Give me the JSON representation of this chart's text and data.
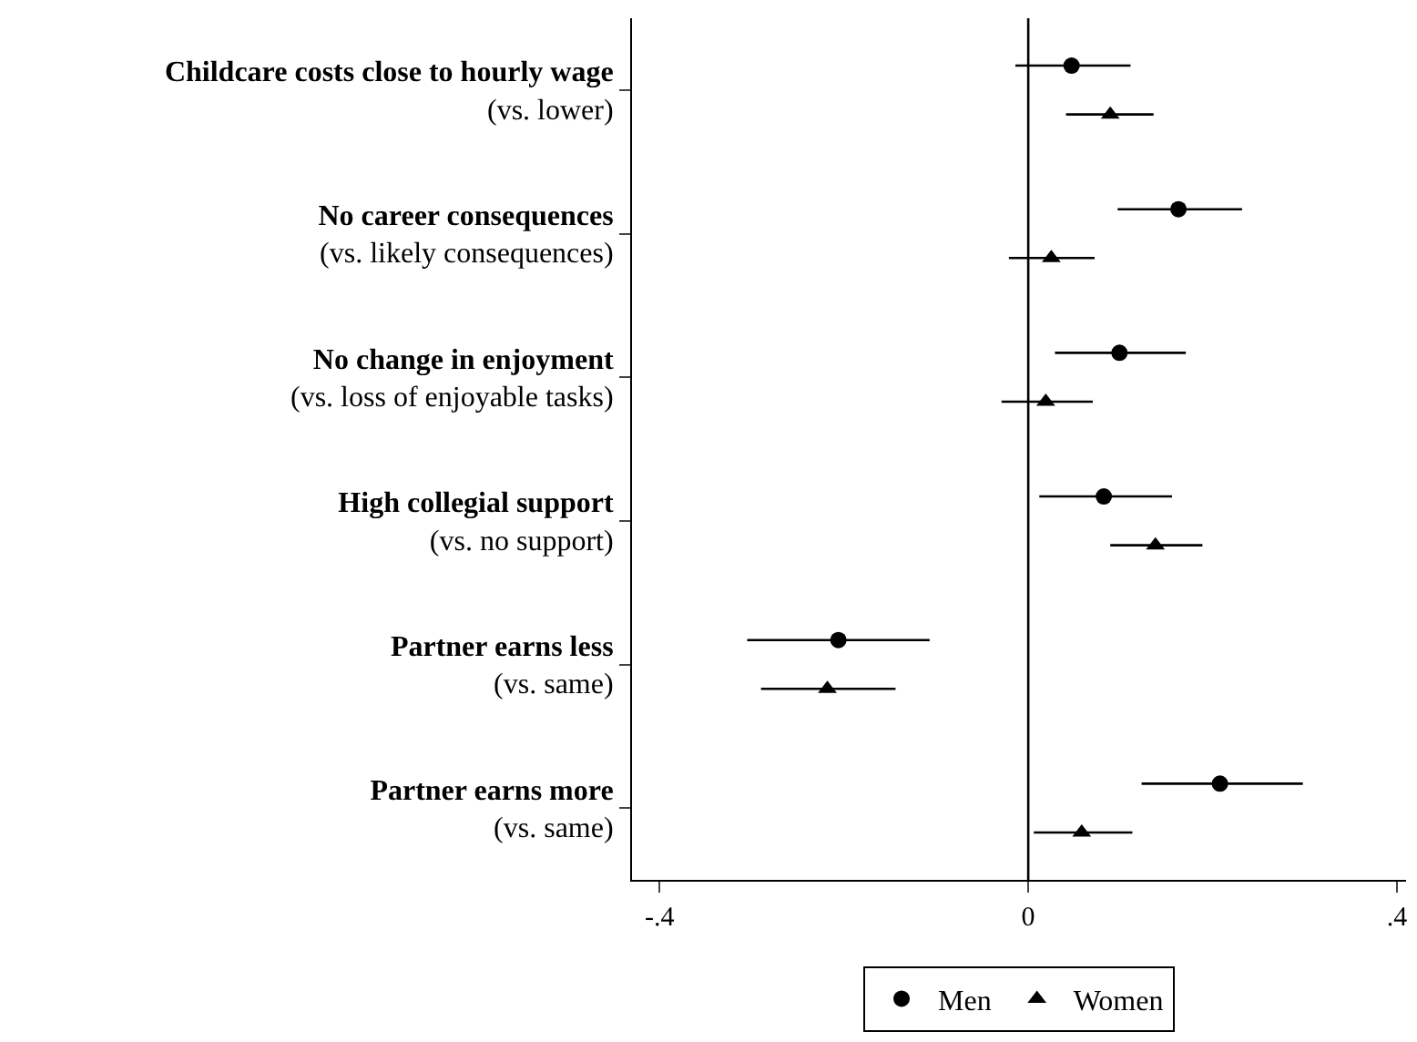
{
  "chart_data": {
    "type": "scatter",
    "orientation": "horizontal",
    "categories": [
      "Childcare costs close to hourly wage\n(vs. lower)",
      "No career consequences\n(vs. likely consequences)",
      "No change in enjoyment\n(vs. loss of enjoyable tasks)",
      "High collegial support\n(vs. no support)",
      "Partner earns less\n(vs. same)",
      "Partner earns more\n(vs. same)"
    ],
    "series": [
      {
        "name": "Men",
        "color": "#000000",
        "marker": "circle",
        "values": [
          0.047,
          0.163,
          0.099,
          0.082,
          -0.206,
          0.208
        ],
        "errors": [
          [
            -0.014,
            0.111
          ],
          [
            0.097,
            0.232
          ],
          [
            0.029,
            0.171
          ],
          [
            0.012,
            0.156
          ],
          [
            -0.305,
            -0.107
          ],
          [
            0.123,
            0.298
          ]
        ]
      },
      {
        "name": "Women",
        "color": "#000000",
        "marker": "triangle",
        "values": [
          0.089,
          0.025,
          0.019,
          0.138,
          -0.218,
          0.058
        ],
        "errors": [
          [
            0.041,
            0.136
          ],
          [
            -0.021,
            0.072
          ],
          [
            -0.029,
            0.07
          ],
          [
            0.089,
            0.189
          ],
          [
            -0.29,
            -0.144
          ],
          [
            0.006,
            0.113
          ]
        ]
      }
    ],
    "xlim": [
      -0.43,
      0.41
    ],
    "xticks": [
      {
        "value": -0.4,
        "label": "-.4"
      },
      0,
      {
        "value": 0.4,
        "label": ".4"
      }
    ],
    "ref_lines": [
      {
        "axis": "x",
        "value": 0,
        "color": "#000000"
      }
    ],
    "grid": false,
    "legend": "bottom"
  }
}
